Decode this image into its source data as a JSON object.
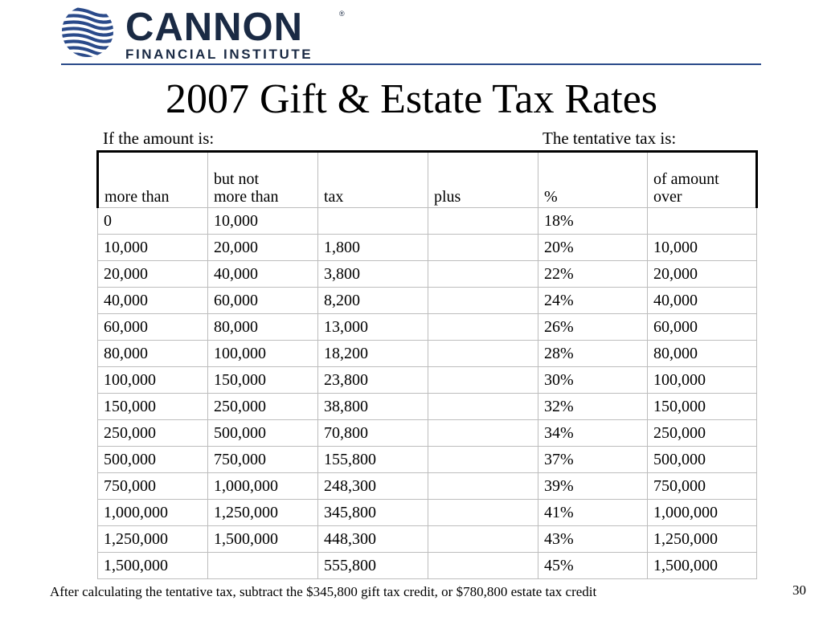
{
  "logo": {
    "name": "CANNON",
    "registered": "®",
    "subtitle": "FINANCIAL INSTITUTE",
    "brand_color": "#1a2a44",
    "mark_color": "#2a4a8a"
  },
  "title": "2007 Gift & Estate Tax Rates",
  "subheadings": {
    "left": "If the amount is:",
    "right": "The tentative tax is:"
  },
  "table": {
    "headers": [
      {
        "line1": "",
        "line2": "more than"
      },
      {
        "line1": "but not",
        "line2": "more than"
      },
      {
        "line1": "",
        "line2": "tax"
      },
      {
        "line1": "",
        "line2": "plus"
      },
      {
        "line1": "",
        "line2": "%"
      },
      {
        "line1": "of amount",
        "line2": "over"
      }
    ],
    "rows": [
      [
        "0",
        "10,000",
        "",
        "",
        "18%",
        ""
      ],
      [
        "10,000",
        "20,000",
        "1,800",
        "",
        "20%",
        "10,000"
      ],
      [
        "20,000",
        "40,000",
        "3,800",
        "",
        "22%",
        "20,000"
      ],
      [
        "40,000",
        "60,000",
        "8,200",
        "",
        "24%",
        "40,000"
      ],
      [
        "60,000",
        "80,000",
        "13,000",
        "",
        "26%",
        "60,000"
      ],
      [
        "80,000",
        "100,000",
        "18,200",
        "",
        "28%",
        "80,000"
      ],
      [
        "100,000",
        "150,000",
        "23,800",
        "",
        "30%",
        "100,000"
      ],
      [
        "150,000",
        "250,000",
        "38,800",
        "",
        "32%",
        "150,000"
      ],
      [
        "250,000",
        "500,000",
        "70,800",
        "",
        "34%",
        "250,000"
      ],
      [
        "500,000",
        "750,000",
        "155,800",
        "",
        "37%",
        "500,000"
      ],
      [
        "750,000",
        "1,000,000",
        "248,300",
        "",
        "39%",
        "750,000"
      ],
      [
        "1,000,000",
        "1,250,000",
        "345,800",
        "",
        "41%",
        "1,000,000"
      ],
      [
        "1,250,000",
        "1,500,000",
        "448,300",
        "",
        "43%",
        "1,250,000"
      ],
      [
        "1,500,000",
        "",
        "555,800",
        "",
        "45%",
        "1,500,000"
      ]
    ]
  },
  "footnote": "After calculating the tentative tax, subtract the $345,800 gift tax credit, or $780,800 estate tax credit",
  "page_number": "30"
}
